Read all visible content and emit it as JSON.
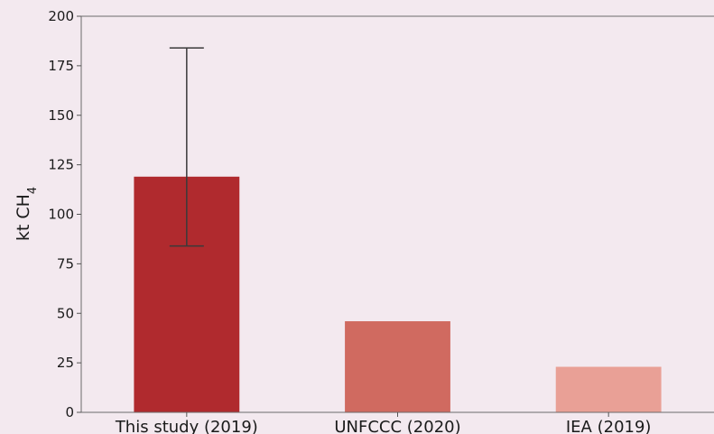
{
  "chart_data": {
    "type": "bar",
    "categories": [
      "This study (2019)",
      "UNFCCC (2020)",
      "IEA (2019)"
    ],
    "values": [
      119,
      46,
      23
    ],
    "error_bars": [
      {
        "low": 84,
        "high": 184
      },
      null,
      null
    ],
    "bar_colors": [
      "#b02a2e",
      "#d06a60",
      "#e9a096"
    ],
    "ylabel": "kt CH",
    "ylabel_subscript": "4",
    "ylim": [
      0,
      200
    ],
    "yticks": [
      "0",
      "25",
      "50",
      "75",
      "100",
      "125",
      "150",
      "175",
      "200"
    ],
    "grid": false
  }
}
